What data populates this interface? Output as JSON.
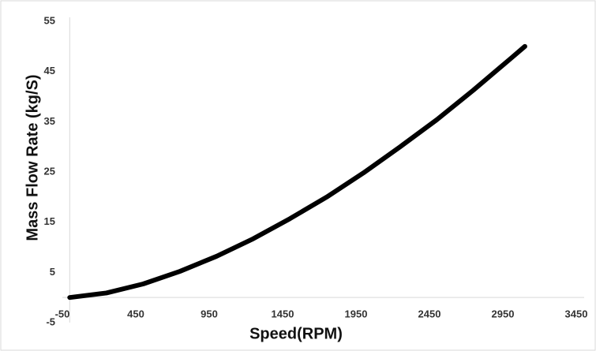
{
  "chart_data": {
    "type": "line",
    "x_label": "Speed(RPM)",
    "y_label": "Mass Flow Rate (kg/S)",
    "x": [
      0,
      250,
      500,
      750,
      1000,
      1250,
      1500,
      1750,
      2000,
      2250,
      2500,
      2750,
      3000,
      3100
    ],
    "series": [
      {
        "color": "#000000",
        "values": [
          0,
          0.9,
          2.7,
          5.2,
          8.2,
          11.7,
          15.7,
          20.0,
          24.8,
          30.0,
          35.4,
          41.3,
          47.5,
          50
        ]
      }
    ],
    "xlim": [
      -50,
      3450
    ],
    "xticks": [
      -50,
      450,
      950,
      1450,
      1950,
      2450,
      2950,
      3450
    ],
    "ylim": [
      -5,
      55
    ],
    "yticks": [
      -5,
      5,
      15,
      25,
      35,
      45,
      55
    ],
    "grid": false
  }
}
